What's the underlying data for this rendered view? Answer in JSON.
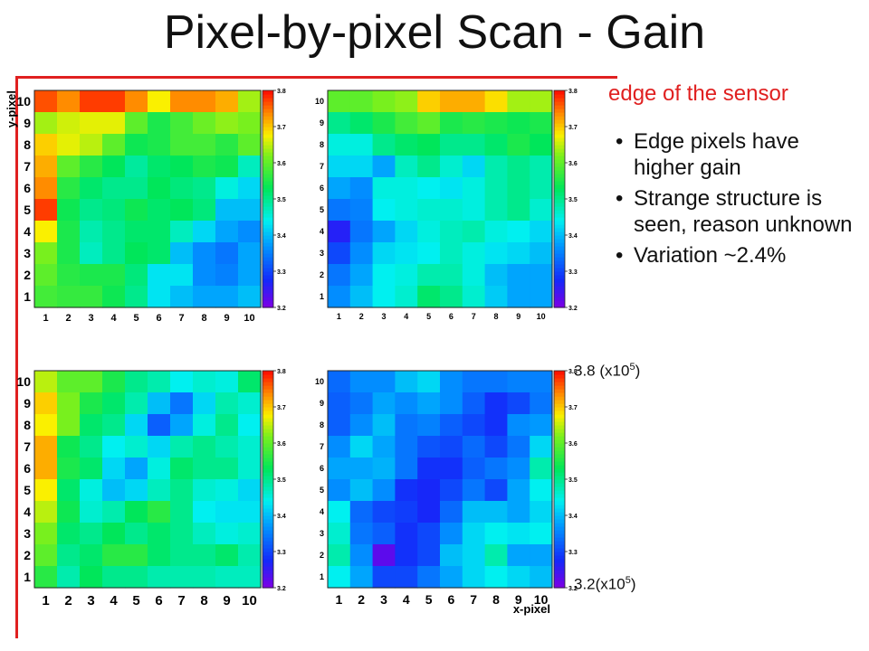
{
  "title": "Pixel-by-pixel Scan - Gain",
  "edge_label": "edge of the sensor",
  "bullets": [
    "Edge pixels have higher gain",
    "Strange structure is seen, reason unknown",
    "Variation ~2.4%"
  ],
  "scale_top": {
    "base": "3.8 (x10",
    "exp": "5",
    "close": ")"
  },
  "scale_bottom": {
    "base": "3.2(x10",
    "exp": "5",
    "close": ")"
  },
  "colors": {
    "edge_line": "#e02020"
  },
  "chart_data": [
    {
      "type": "heatmap",
      "panel": "top-left",
      "xlabel": "",
      "ylabel": "y-pixel",
      "x_ticks": [
        "1",
        "2",
        "3",
        "4",
        "5",
        "6",
        "7",
        "8",
        "9",
        "10"
      ],
      "y_ticks": [
        "1",
        "2",
        "3",
        "4",
        "5",
        "6",
        "7",
        "8",
        "9",
        "10"
      ],
      "colorbar_ticks": [
        "3.2",
        "3.3",
        "3.4",
        "3.5",
        "3.6",
        "3.7",
        "3.8"
      ],
      "zlim": [
        3.2,
        3.8
      ],
      "rows_top_to_bottom": [
        [
          3.77,
          3.74,
          3.78,
          3.78,
          3.74,
          3.68,
          3.74,
          3.74,
          3.72,
          3.64
        ],
        [
          3.64,
          3.66,
          3.67,
          3.67,
          3.6,
          3.55,
          3.58,
          3.61,
          3.63,
          3.62
        ],
        [
          3.7,
          3.67,
          3.65,
          3.6,
          3.54,
          3.55,
          3.58,
          3.58,
          3.56,
          3.6
        ],
        [
          3.72,
          3.6,
          3.56,
          3.53,
          3.49,
          3.52,
          3.53,
          3.55,
          3.54,
          3.47
        ],
        [
          3.74,
          3.56,
          3.52,
          3.5,
          3.5,
          3.53,
          3.51,
          3.5,
          3.45,
          3.42
        ],
        [
          3.78,
          3.54,
          3.5,
          3.51,
          3.54,
          3.52,
          3.53,
          3.51,
          3.4,
          3.4
        ],
        [
          3.68,
          3.55,
          3.48,
          3.5,
          3.52,
          3.52,
          3.47,
          3.42,
          3.38,
          3.36
        ],
        [
          3.62,
          3.55,
          3.47,
          3.5,
          3.53,
          3.52,
          3.4,
          3.36,
          3.34,
          3.38
        ],
        [
          3.6,
          3.56,
          3.55,
          3.55,
          3.51,
          3.43,
          3.43,
          3.36,
          3.35,
          3.38
        ],
        [
          3.58,
          3.57,
          3.57,
          3.54,
          3.5,
          3.43,
          3.4,
          3.38,
          3.38,
          3.4
        ]
      ]
    },
    {
      "type": "heatmap",
      "panel": "top-right",
      "xlabel": "",
      "ylabel": "",
      "x_ticks": [
        "1",
        "2",
        "3",
        "4",
        "5",
        "6",
        "7",
        "8",
        "9",
        "10"
      ],
      "y_ticks": [
        "1",
        "2",
        "3",
        "4",
        "5",
        "6",
        "7",
        "8",
        "9",
        "10"
      ],
      "colorbar_ticks": [
        "3.2",
        "3.3",
        "3.4",
        "3.5",
        "3.6",
        "3.7",
        "3.8"
      ],
      "zlim": [
        3.2,
        3.8
      ],
      "rows_top_to_bottom": [
        [
          3.6,
          3.6,
          3.62,
          3.63,
          3.7,
          3.72,
          3.72,
          3.69,
          3.64,
          3.64
        ],
        [
          3.5,
          3.52,
          3.55,
          3.58,
          3.6,
          3.55,
          3.56,
          3.55,
          3.54,
          3.55
        ],
        [
          3.45,
          3.45,
          3.5,
          3.52,
          3.53,
          3.5,
          3.5,
          3.52,
          3.55,
          3.53
        ],
        [
          3.42,
          3.42,
          3.38,
          3.47,
          3.5,
          3.46,
          3.42,
          3.48,
          3.5,
          3.48
        ],
        [
          3.38,
          3.36,
          3.45,
          3.45,
          3.44,
          3.43,
          3.45,
          3.48,
          3.5,
          3.48
        ],
        [
          3.34,
          3.35,
          3.44,
          3.45,
          3.46,
          3.46,
          3.45,
          3.48,
          3.5,
          3.46
        ],
        [
          3.26,
          3.34,
          3.38,
          3.42,
          3.45,
          3.47,
          3.48,
          3.45,
          3.44,
          3.42
        ],
        [
          3.3,
          3.36,
          3.42,
          3.43,
          3.44,
          3.47,
          3.45,
          3.43,
          3.42,
          3.4
        ],
        [
          3.34,
          3.38,
          3.44,
          3.45,
          3.48,
          3.48,
          3.45,
          3.4,
          3.38,
          3.38
        ],
        [
          3.36,
          3.4,
          3.44,
          3.46,
          3.52,
          3.5,
          3.46,
          3.41,
          3.38,
          3.38
        ]
      ]
    },
    {
      "type": "heatmap",
      "panel": "bottom-left",
      "xlabel": "",
      "ylabel": "",
      "x_ticks": [
        "1",
        "2",
        "3",
        "4",
        "5",
        "6",
        "7",
        "8",
        "9",
        "10"
      ],
      "y_ticks": [
        "1",
        "2",
        "3",
        "4",
        "5",
        "6",
        "7",
        "8",
        "9",
        "10"
      ],
      "colorbar_ticks": [
        "3.2",
        "3.3",
        "3.4",
        "3.5",
        "3.6",
        "3.7",
        "3.8"
      ],
      "zlim": [
        3.2,
        3.8
      ],
      "rows_top_to_bottom": [
        [
          3.65,
          3.6,
          3.6,
          3.55,
          3.5,
          3.48,
          3.44,
          3.46,
          3.45,
          3.52
        ],
        [
          3.7,
          3.62,
          3.55,
          3.52,
          3.48,
          3.4,
          3.34,
          3.42,
          3.48,
          3.46
        ],
        [
          3.68,
          3.62,
          3.52,
          3.5,
          3.42,
          3.32,
          3.38,
          3.45,
          3.5,
          3.44
        ],
        [
          3.72,
          3.54,
          3.5,
          3.44,
          3.46,
          3.42,
          3.48,
          3.5,
          3.48,
          3.46
        ],
        [
          3.72,
          3.55,
          3.52,
          3.42,
          3.38,
          3.45,
          3.52,
          3.5,
          3.5,
          3.46
        ],
        [
          3.68,
          3.52,
          3.45,
          3.4,
          3.42,
          3.47,
          3.5,
          3.46,
          3.45,
          3.42
        ],
        [
          3.65,
          3.54,
          3.46,
          3.48,
          3.53,
          3.56,
          3.5,
          3.44,
          3.43,
          3.43
        ],
        [
          3.62,
          3.52,
          3.5,
          3.53,
          3.5,
          3.52,
          3.5,
          3.47,
          3.45,
          3.46
        ],
        [
          3.6,
          3.5,
          3.52,
          3.56,
          3.56,
          3.52,
          3.5,
          3.5,
          3.52,
          3.48
        ],
        [
          3.56,
          3.48,
          3.53,
          3.5,
          3.5,
          3.48,
          3.48,
          3.48,
          3.47,
          3.47
        ]
      ]
    },
    {
      "type": "heatmap",
      "panel": "bottom-right",
      "xlabel": "x-pixel",
      "ylabel": "",
      "x_ticks": [
        "1",
        "2",
        "3",
        "4",
        "5",
        "6",
        "7",
        "8",
        "9",
        "10"
      ],
      "y_ticks": [
        "1",
        "2",
        "3",
        "4",
        "5",
        "6",
        "7",
        "8",
        "9",
        "10"
      ],
      "colorbar_ticks": [
        "3.2",
        "3.3",
        "3.4",
        "3.5",
        "3.6",
        "3.7",
        "3.8"
      ],
      "zlim": [
        3.2,
        3.8
      ],
      "rows_top_to_bottom": [
        [
          3.33,
          3.36,
          3.36,
          3.4,
          3.42,
          3.36,
          3.34,
          3.34,
          3.35,
          3.35
        ],
        [
          3.32,
          3.34,
          3.38,
          3.36,
          3.38,
          3.36,
          3.32,
          3.28,
          3.3,
          3.34
        ],
        [
          3.32,
          3.36,
          3.4,
          3.34,
          3.35,
          3.32,
          3.3,
          3.28,
          3.36,
          3.37
        ],
        [
          3.36,
          3.42,
          3.38,
          3.34,
          3.31,
          3.3,
          3.33,
          3.3,
          3.34,
          3.42
        ],
        [
          3.38,
          3.38,
          3.39,
          3.34,
          3.28,
          3.28,
          3.32,
          3.34,
          3.36,
          3.48
        ],
        [
          3.36,
          3.4,
          3.36,
          3.28,
          3.27,
          3.3,
          3.34,
          3.3,
          3.38,
          3.44
        ],
        [
          3.44,
          3.33,
          3.3,
          3.29,
          3.27,
          3.33,
          3.4,
          3.4,
          3.38,
          3.42
        ],
        [
          3.46,
          3.34,
          3.32,
          3.28,
          3.3,
          3.36,
          3.42,
          3.44,
          3.43,
          3.44
        ],
        [
          3.48,
          3.36,
          3.22,
          3.28,
          3.3,
          3.4,
          3.42,
          3.48,
          3.38,
          3.38
        ],
        [
          3.44,
          3.38,
          3.3,
          3.3,
          3.34,
          3.38,
          3.42,
          3.44,
          3.42,
          3.4
        ]
      ]
    }
  ]
}
